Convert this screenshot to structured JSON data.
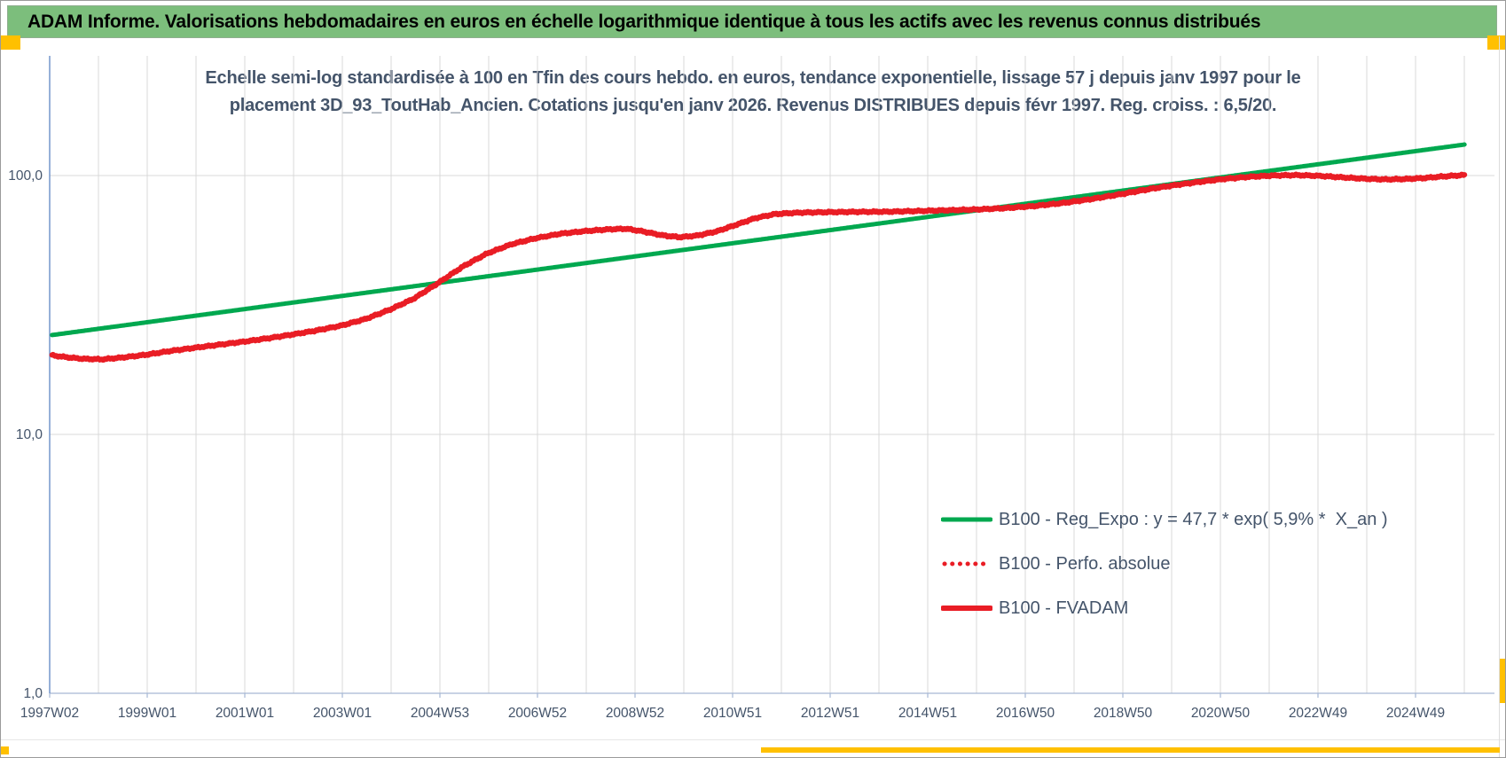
{
  "window": {
    "title": "ADAM Informe. Valorisations hebdomadaires en euros en échelle logarithmique identique à tous les actifs avec les revenus connus distribués",
    "title_bar_color": "#7CBE7C",
    "handle_color": "#FFC000"
  },
  "chart_data": {
    "type": "line",
    "log_scale_y": true,
    "title_line1": "Echelle semi-log standardisée à 100 en Tfin des cours hebdo. en euros, tendance exponentielle, lissage 57 j depuis janv 1997 pour le",
    "title_line2": "placement 3D_93_ToutHab_Ancien. Cotations jusqu'en janv 2026. Revenus DISTRIBUES depuis févr 1997. Reg. croiss. : 6,5/20.",
    "ylim": [
      1,
      300
    ],
    "x_range_years": [
      1997.03,
      2026.65
    ],
    "grid_step_years": 1,
    "grid_color": "#D9D9D9",
    "axis_color": "#6A8FC8",
    "baseline_color": "#A6B8D4",
    "label_color": "#44546A",
    "y_ticks": [
      {
        "label": "100,0",
        "v": 100
      },
      {
        "label": "10,0",
        "v": 10
      },
      {
        "label": "1,0",
        "v": 1
      }
    ],
    "x_ticks": [
      {
        "label": "1997W02",
        "t": 1997.03
      },
      {
        "label": "1999W01",
        "t": 1999.03
      },
      {
        "label": "2001W01",
        "t": 2001.03
      },
      {
        "label": "2003W01",
        "t": 2003.03
      },
      {
        "label": "2004W53",
        "t": 2005.03
      },
      {
        "label": "2006W52",
        "t": 2007.03
      },
      {
        "label": "2008W52",
        "t": 2009.03
      },
      {
        "label": "2010W51",
        "t": 2011.03
      },
      {
        "label": "2012W51",
        "t": 2013.03
      },
      {
        "label": "2014W51",
        "t": 2015.03
      },
      {
        "label": "2016W50",
        "t": 2017.03
      },
      {
        "label": "2018W50",
        "t": 2019.03
      },
      {
        "label": "2020W50",
        "t": 2021.03
      },
      {
        "label": "2022W49",
        "t": 2023.03
      },
      {
        "label": "2024W49",
        "t": 2025.03
      }
    ],
    "legend_position": "center-right",
    "series": [
      {
        "name": "B100 - Reg_Expo : y = 47,7 * exp( 5,9% *  X_an )",
        "color": "#00A84F",
        "style": "solid",
        "width": 5,
        "points": [
          [
            1997.08,
            24.2
          ],
          [
            2026.04,
            131.8
          ]
        ]
      },
      {
        "name": "B100 - Perfo. absolue",
        "color": "#E91D25",
        "style": "dotted",
        "width": 5,
        "coincides_with": "B100 - FVADAM"
      },
      {
        "name": "B100 - FVADAM",
        "color": "#E91D25",
        "style": "solid",
        "width": 6,
        "points": [
          [
            1997.08,
            20.2
          ],
          [
            1997.35,
            19.9
          ],
          [
            1997.7,
            19.6
          ],
          [
            1998.1,
            19.5
          ],
          [
            1998.5,
            19.8
          ],
          [
            1999.0,
            20.3
          ],
          [
            1999.5,
            21.0
          ],
          [
            2000.0,
            21.6
          ],
          [
            2000.5,
            22.2
          ],
          [
            2001.0,
            22.8
          ],
          [
            2001.5,
            23.5
          ],
          [
            2002.0,
            24.3
          ],
          [
            2002.5,
            25.2
          ],
          [
            2003.0,
            26.3
          ],
          [
            2003.5,
            27.9
          ],
          [
            2004.0,
            30.3
          ],
          [
            2004.5,
            33.5
          ],
          [
            2005.0,
            38.5
          ],
          [
            2005.5,
            44.5
          ],
          [
            2006.0,
            50.0
          ],
          [
            2006.5,
            54.3
          ],
          [
            2007.0,
            57.3
          ],
          [
            2007.5,
            59.6
          ],
          [
            2008.0,
            61.0
          ],
          [
            2008.5,
            62.0
          ],
          [
            2008.85,
            62.3
          ],
          [
            2009.2,
            60.8
          ],
          [
            2009.6,
            58.7
          ],
          [
            2009.95,
            57.8
          ],
          [
            2010.3,
            58.6
          ],
          [
            2010.7,
            60.8
          ],
          [
            2011.1,
            64.5
          ],
          [
            2011.5,
            68.5
          ],
          [
            2011.9,
            71.0
          ],
          [
            2012.4,
            71.9
          ],
          [
            2013.0,
            72.2
          ],
          [
            2013.6,
            72.4
          ],
          [
            2014.2,
            72.5
          ],
          [
            2014.8,
            72.9
          ],
          [
            2015.4,
            73.4
          ],
          [
            2016.0,
            73.9
          ],
          [
            2016.6,
            74.8
          ],
          [
            2017.2,
            76.2
          ],
          [
            2017.8,
            78.3
          ],
          [
            2018.4,
            81.2
          ],
          [
            2019.0,
            84.8
          ],
          [
            2019.6,
            88.8
          ],
          [
            2020.1,
            91.8
          ],
          [
            2020.6,
            94.5
          ],
          [
            2021.1,
            97.0
          ],
          [
            2021.6,
            98.8
          ],
          [
            2022.1,
            100.0
          ],
          [
            2022.6,
            100.4
          ],
          [
            2023.1,
            99.6
          ],
          [
            2023.6,
            98.2
          ],
          [
            2024.0,
            97.2
          ],
          [
            2024.4,
            96.6
          ],
          [
            2024.8,
            96.9
          ],
          [
            2025.2,
            97.8
          ],
          [
            2025.6,
            99.2
          ],
          [
            2026.04,
            100.5
          ]
        ]
      }
    ]
  }
}
